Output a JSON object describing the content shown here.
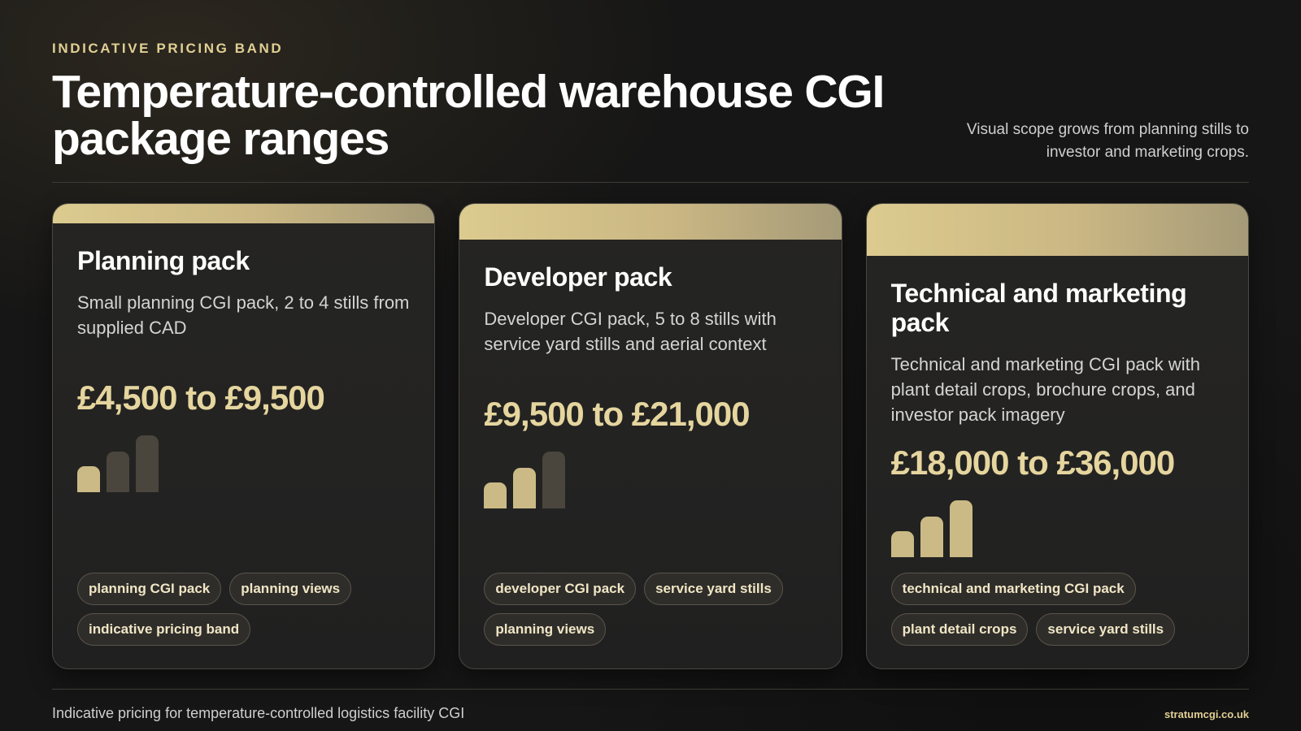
{
  "header": {
    "eyebrow": "INDICATIVE PRICING BAND",
    "title": "Temperature-controlled warehouse CGI package ranges",
    "subtitle": "Visual scope grows from planning stills to investor and marketing crops."
  },
  "colors": {
    "accent_gold": "#e1cf94",
    "bar_active": "#cbba86",
    "bar_inactive": "#4a463d",
    "background": "#161616"
  },
  "cards": [
    {
      "title": "Planning pack",
      "description": "Small planning CGI pack, 2 to 4 stills from supplied CAD",
      "price": "£4,500 to £9,500",
      "scope_level": 1,
      "scope_max": 3,
      "tags": [
        "planning CGI pack",
        "planning views",
        "indicative pricing band"
      ]
    },
    {
      "title": "Developer pack",
      "description": "Developer CGI pack, 5 to 8 stills with service yard stills and aerial context",
      "price": "£9,500 to £21,000",
      "scope_level": 2,
      "scope_max": 3,
      "tags": [
        "developer CGI pack",
        "service yard stills",
        "planning views"
      ]
    },
    {
      "title": "Technical and marketing pack",
      "description": "Technical and marketing CGI pack with plant detail crops, brochure crops, and investor pack imagery",
      "price": "£18,000 to £36,000",
      "scope_level": 3,
      "scope_max": 3,
      "tags": [
        "technical and marketing CGI pack",
        "plant detail crops",
        "service yard stills"
      ]
    }
  ],
  "footer": {
    "note": "Indicative pricing for temperature-controlled logistics facility CGI",
    "domain": "stratumcgi.co.uk"
  }
}
